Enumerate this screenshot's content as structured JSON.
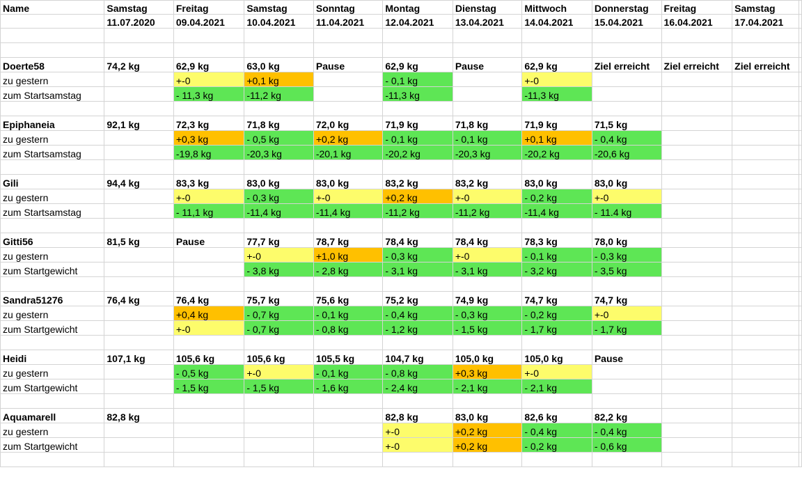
{
  "colors": {
    "g": "#5ee655",
    "y": "#fdfc6b",
    "o": "#ffc000"
  },
  "header": {
    "name_label": "Name",
    "columns": [
      {
        "day": "Samstag",
        "date": "11.07.2020"
      },
      {
        "day": "Freitag",
        "date": "09.04.2021"
      },
      {
        "day": "Samstag",
        "date": "10.04.2021"
      },
      {
        "day": "Sonntag",
        "date": "11.04.2021"
      },
      {
        "day": "Montag",
        "date": "12.04.2021"
      },
      {
        "day": "Dienstag",
        "date": "13.04.2021"
      },
      {
        "day": "Mittwoch",
        "date": "14.04.2021"
      },
      {
        "day": "Donnerstag",
        "date": "15.04.2021"
      },
      {
        "day": "Freitag",
        "date": "16.04.2021"
      },
      {
        "day": "Samstag",
        "date": "17.04.2021"
      }
    ]
  },
  "participants": [
    {
      "name": "Doerte58",
      "weights": [
        "74,2 kg",
        "62,9 kg",
        "63,0 kg",
        "Pause",
        "62,9 kg",
        "Pause",
        "62,9 kg",
        "Ziel erreicht",
        "Ziel erreicht",
        "Ziel erreicht"
      ],
      "diff_label": "zu gestern",
      "diff": [
        [
          "",
          ""
        ],
        [
          "+-0",
          "y"
        ],
        [
          "+0,1 kg",
          "o"
        ],
        [
          "",
          ""
        ],
        [
          "- 0,1 kg",
          "g"
        ],
        [
          "",
          ""
        ],
        [
          "+-0",
          "y"
        ],
        [
          "",
          ""
        ],
        [
          "",
          ""
        ],
        [
          "",
          ""
        ]
      ],
      "total_label": "zum Startsamstag",
      "total": [
        [
          "",
          ""
        ],
        [
          "- 11,3 kg",
          "g"
        ],
        [
          "-11,2 kg",
          "g"
        ],
        [
          "",
          ""
        ],
        [
          "-11,3 kg",
          "g"
        ],
        [
          "",
          ""
        ],
        [
          "-11,3 kg",
          "g"
        ],
        [
          "",
          ""
        ],
        [
          "",
          ""
        ],
        [
          "",
          ""
        ]
      ]
    },
    {
      "name": "Epiphaneia",
      "weights": [
        "92,1 kg",
        "72,3 kg",
        "71,8 kg",
        "72,0 kg",
        "71,9 kg",
        "71,8 kg",
        "71,9 kg",
        "71,5 kg",
        "",
        ""
      ],
      "diff_label": "zu gestern",
      "diff": [
        [
          "",
          ""
        ],
        [
          "+0,3 kg",
          "o"
        ],
        [
          "- 0,5 kg",
          "g"
        ],
        [
          "+0,2 kg",
          "o"
        ],
        [
          "- 0,1 kg",
          "g"
        ],
        [
          "- 0,1 kg",
          "g"
        ],
        [
          "+0,1 kg",
          "o"
        ],
        [
          "- 0,4 kg",
          "g"
        ],
        [
          "",
          ""
        ],
        [
          "",
          ""
        ]
      ],
      "total_label": "zum Startsamstag",
      "total": [
        [
          "",
          ""
        ],
        [
          "-19,8 kg",
          "g"
        ],
        [
          "-20,3 kg",
          "g"
        ],
        [
          "-20,1 kg",
          "g"
        ],
        [
          "-20,2 kg",
          "g"
        ],
        [
          "-20,3 kg",
          "g"
        ],
        [
          "-20,2 kg",
          "g"
        ],
        [
          "-20,6 kg",
          "g"
        ],
        [
          "",
          ""
        ],
        [
          "",
          ""
        ]
      ]
    },
    {
      "name": "Gili",
      "weights": [
        "94,4 kg",
        "83,3 kg",
        "83,0 kg",
        "83,0 kg",
        "83,2 kg",
        "83,2 kg",
        "83,0 kg",
        "83,0 kg",
        "",
        ""
      ],
      "diff_label": "zu gestern",
      "diff": [
        [
          "",
          ""
        ],
        [
          "+-0",
          "y"
        ],
        [
          "- 0,3 kg",
          "g"
        ],
        [
          "+-0",
          "y"
        ],
        [
          "+0,2 kg",
          "o"
        ],
        [
          "+-0",
          "y"
        ],
        [
          "- 0,2 kg",
          "g"
        ],
        [
          "+-0",
          "y"
        ],
        [
          "",
          ""
        ],
        [
          "",
          ""
        ]
      ],
      "total_label": "zum Startsamstag",
      "total": [
        [
          "",
          ""
        ],
        [
          "- 11,1 kg",
          "g"
        ],
        [
          "-11,4 kg",
          "g"
        ],
        [
          "-11,4 kg",
          "g"
        ],
        [
          "-11,2 kg",
          "g"
        ],
        [
          "-11,2 kg",
          "g"
        ],
        [
          "-11,4 kg",
          "g"
        ],
        [
          "- 11.4 kg",
          "g"
        ],
        [
          "",
          ""
        ],
        [
          "",
          ""
        ]
      ]
    },
    {
      "name": "Gitti56",
      "weights": [
        "81,5 kg",
        "Pause",
        "77,7 kg",
        "78,7 kg",
        "78,4 kg",
        "78,4 kg",
        "78,3 kg",
        "78,0 kg",
        "",
        ""
      ],
      "diff_label": "zu gestern",
      "diff": [
        [
          "",
          ""
        ],
        [
          "",
          ""
        ],
        [
          "+-0",
          "y"
        ],
        [
          "+1,0 kg",
          "o"
        ],
        [
          "- 0,3 kg",
          "g"
        ],
        [
          "+-0",
          "y"
        ],
        [
          "- 0,1 kg",
          "g"
        ],
        [
          "- 0,3 kg",
          "g"
        ],
        [
          "",
          ""
        ],
        [
          "",
          ""
        ]
      ],
      "total_label": "zum Startgewicht",
      "total": [
        [
          "",
          ""
        ],
        [
          "",
          ""
        ],
        [
          "- 3,8 kg",
          "g"
        ],
        [
          "- 2,8 kg",
          "g"
        ],
        [
          "- 3,1 kg",
          "g"
        ],
        [
          "- 3,1 kg",
          "g"
        ],
        [
          "- 3,2 kg",
          "g"
        ],
        [
          "- 3,5 kg",
          "g"
        ],
        [
          "",
          ""
        ],
        [
          "",
          ""
        ]
      ]
    },
    {
      "name": "Sandra51276",
      "weights": [
        "76,4 kg",
        "76,4 kg",
        "75,7 kg",
        "75,6 kg",
        "75,2 kg",
        "74,9 kg",
        "74,7 kg",
        "74,7 kg",
        "",
        ""
      ],
      "diff_label": "zu gestern",
      "diff": [
        [
          "",
          ""
        ],
        [
          "+0,4 kg",
          "o"
        ],
        [
          "- 0,7 kg",
          "g"
        ],
        [
          "- 0,1 kg",
          "g"
        ],
        [
          "- 0,4 kg",
          "g"
        ],
        [
          "- 0,3 kg",
          "g"
        ],
        [
          "- 0,2 kg",
          "g"
        ],
        [
          "+-0",
          "y"
        ],
        [
          "",
          ""
        ],
        [
          "",
          ""
        ]
      ],
      "total_label": "zum Startgewicht",
      "total": [
        [
          "",
          ""
        ],
        [
          "+-0",
          "y"
        ],
        [
          "- 0,7 kg",
          "g"
        ],
        [
          "- 0,8 kg",
          "g"
        ],
        [
          "- 1,2 kg",
          "g"
        ],
        [
          "- 1,5 kg",
          "g"
        ],
        [
          "- 1,7 kg",
          "g"
        ],
        [
          "- 1,7 kg",
          "g"
        ],
        [
          "",
          ""
        ],
        [
          "",
          ""
        ]
      ]
    },
    {
      "name": "Heidi",
      "weights": [
        "107,1 kg",
        "105,6 kg",
        "105,6 kg",
        "105,5 kg",
        "104,7 kg",
        "105,0 kg",
        "105,0 kg",
        "Pause",
        "",
        ""
      ],
      "diff_label": "zu gestern",
      "diff": [
        [
          "",
          ""
        ],
        [
          "- 0,5 kg",
          "g"
        ],
        [
          "+-0",
          "y"
        ],
        [
          "- 0,1 kg",
          "g"
        ],
        [
          "- 0,8 kg",
          "g"
        ],
        [
          "+0,3 kg",
          "o"
        ],
        [
          "+-0",
          "y"
        ],
        [
          "",
          ""
        ],
        [
          "",
          ""
        ],
        [
          "",
          ""
        ]
      ],
      "total_label": "zum Startgewicht",
      "total": [
        [
          "",
          ""
        ],
        [
          "- 1,5 kg",
          "g"
        ],
        [
          "- 1,5 kg",
          "g"
        ],
        [
          "- 1,6 kg",
          "g"
        ],
        [
          "- 2,4 kg",
          "g"
        ],
        [
          "- 2,1 kg",
          "g"
        ],
        [
          "- 2,1 kg",
          "g"
        ],
        [
          "",
          ""
        ],
        [
          "",
          ""
        ],
        [
          "",
          ""
        ]
      ]
    },
    {
      "name": "Aquamarell",
      "weights": [
        "82,8 kg",
        "",
        "",
        "",
        "82,8 kg",
        "83,0 kg",
        "82,6 kg",
        "82,2 kg",
        "",
        ""
      ],
      "diff_label": "zu gestern",
      "diff": [
        [
          "",
          ""
        ],
        [
          "",
          ""
        ],
        [
          "",
          ""
        ],
        [
          "",
          ""
        ],
        [
          "+-0",
          "y"
        ],
        [
          "+0,2 kg",
          "o"
        ],
        [
          "- 0,4 kg",
          "g"
        ],
        [
          "- 0,4 kg",
          "g"
        ],
        [
          "",
          ""
        ],
        [
          "",
          ""
        ]
      ],
      "total_label": "zum Startgewicht",
      "total": [
        [
          "",
          ""
        ],
        [
          "",
          ""
        ],
        [
          "",
          ""
        ],
        [
          "",
          ""
        ],
        [
          "+-0",
          "y"
        ],
        [
          "+0,2 kg",
          "o"
        ],
        [
          "- 0,2 kg",
          "g"
        ],
        [
          "- 0,6 kg",
          "g"
        ],
        [
          "",
          ""
        ],
        [
          "",
          ""
        ]
      ]
    }
  ]
}
